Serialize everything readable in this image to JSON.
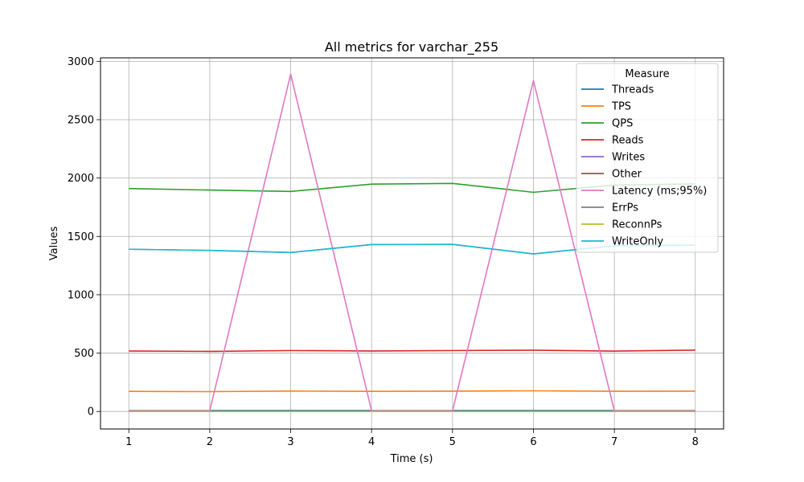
{
  "chart_data": {
    "type": "line",
    "title": "All metrics for varchar_255",
    "xlabel": "Time (s)",
    "ylabel": "Values",
    "x": [
      1,
      2,
      3,
      4,
      5,
      6,
      7,
      8
    ],
    "xlim": [
      0.65,
      8.35
    ],
    "ylim": [
      -150,
      3030
    ],
    "xticks": [
      1,
      2,
      3,
      4,
      5,
      6,
      7,
      8
    ],
    "yticks": [
      0,
      500,
      1000,
      1500,
      2000,
      2500,
      3000
    ],
    "grid": true,
    "legend": {
      "title": "Measure",
      "placement": "top-right"
    },
    "series": [
      {
        "name": "Threads",
        "color": "#1f77b4",
        "values": [
          8,
          8,
          8,
          8,
          8,
          8,
          8,
          8
        ]
      },
      {
        "name": "TPS",
        "color": "#ff7f0e",
        "values": [
          172,
          170,
          175,
          172,
          174,
          177,
          173,
          174
        ]
      },
      {
        "name": "QPS",
        "color": "#2ca02c",
        "values": [
          1910,
          1897,
          1885,
          1948,
          1954,
          1878,
          1940,
          1950
        ]
      },
      {
        "name": "Reads",
        "color": "#d62728",
        "values": [
          518,
          515,
          522,
          518,
          522,
          525,
          517,
          526
        ]
      },
      {
        "name": "Writes",
        "color": "#9467bd",
        "values": [
          1390,
          1380,
          1362,
          1430,
          1432,
          1350,
          1420,
          1425
        ]
      },
      {
        "name": "Other",
        "color": "#8c564b",
        "values": [
          0,
          0,
          0,
          0,
          0,
          0,
          0,
          0
        ]
      },
      {
        "name": "Latency (ms;95%)",
        "color": "#e377c2",
        "values": [
          6,
          6,
          2890,
          6,
          6,
          2835,
          6,
          6
        ]
      },
      {
        "name": "ErrPs",
        "color": "#7f7f7f",
        "values": [
          0,
          0,
          0,
          0,
          0,
          0,
          0,
          0
        ]
      },
      {
        "name": "ReconnPs",
        "color": "#bcbd22",
        "values": [
          0,
          0,
          0,
          0,
          0,
          0,
          0,
          0
        ]
      },
      {
        "name": "WriteOnly",
        "color": "#17becf",
        "values": [
          1390,
          1380,
          1362,
          1430,
          1432,
          1350,
          1420,
          1425
        ]
      }
    ]
  }
}
